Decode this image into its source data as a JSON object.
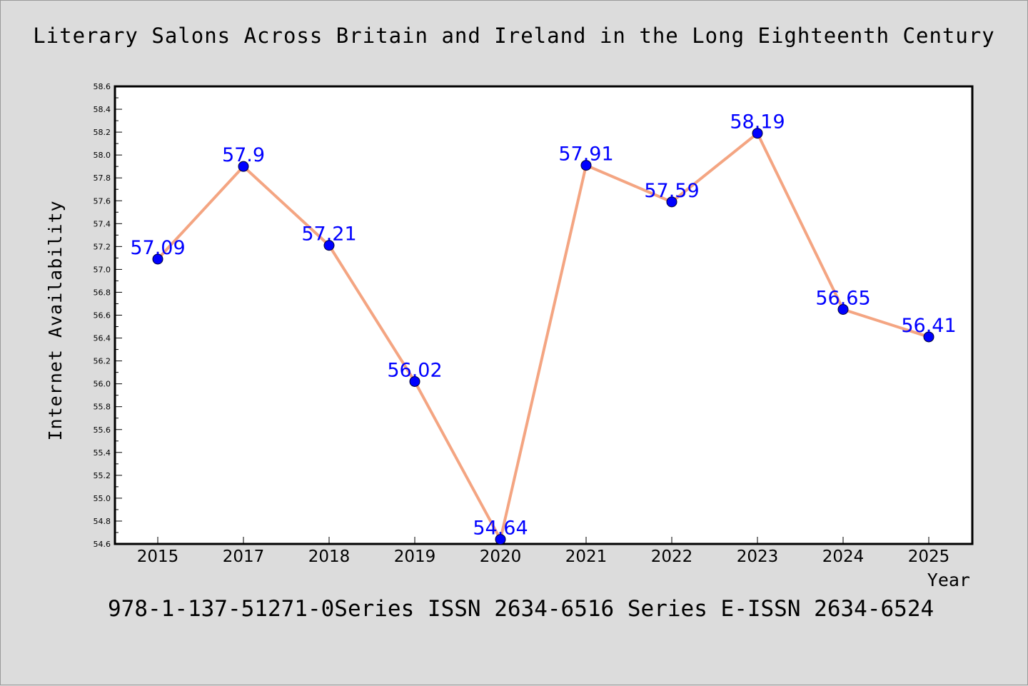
{
  "title": "Literary Salons Across Britain and Ireland in the Long Eighteenth Century",
  "footer": "978-1-137-51271-0Series ISSN 2634-6516 Series E-ISSN 2634-6524",
  "chart_data": {
    "type": "line",
    "title": "Literary Salons Across Britain and Ireland in the Long Eighteenth Century",
    "xlabel": "Year",
    "ylabel": "Internet Availability",
    "categories": [
      "2015",
      "2017",
      "2018",
      "2019",
      "2020",
      "2021",
      "2022",
      "2023",
      "2024",
      "2025"
    ],
    "values": [
      57.09,
      57.9,
      57.21,
      56.02,
      54.64,
      57.91,
      57.59,
      58.19,
      56.65,
      56.41
    ],
    "data_labels": [
      "57.09",
      "57.9",
      "57.21",
      "56.02",
      "54.64",
      "57.91",
      "57.59",
      "58.19",
      "56.65",
      "56.41"
    ],
    "ylim": [
      54.6,
      58.6
    ],
    "yticks": [
      "54.6",
      "54.8",
      "55.0",
      "55.2",
      "55.4",
      "55.6",
      "55.8",
      "56.0",
      "56.2",
      "56.4",
      "56.6",
      "56.8",
      "57.0",
      "57.2",
      "57.4",
      "57.6",
      "57.8",
      "58.0",
      "58.2",
      "58.4",
      "58.6"
    ],
    "grid": false,
    "legend": "none",
    "colors": {
      "line": "#f4a582",
      "marker": "#0000ff",
      "label": "#0000ff",
      "frame": "#000000"
    }
  }
}
